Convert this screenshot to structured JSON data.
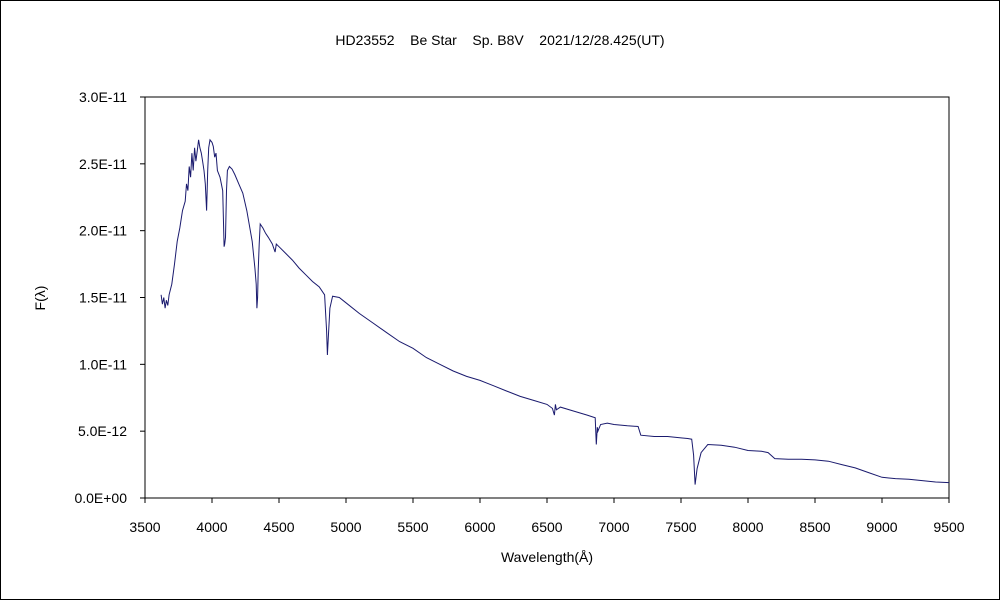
{
  "chart_data": {
    "type": "line",
    "title": "HD23552    Be Star    Sp. B8V    2021/12/28.425(UT)",
    "xlabel": "Wavelength(Å)",
    "ylabel": "F(λ)",
    "xlim": [
      3500,
      9500
    ],
    "ylim": [
      0,
      3e-11
    ],
    "xticks": [
      3500,
      4000,
      4500,
      5000,
      5500,
      6000,
      6500,
      7000,
      7500,
      8000,
      8500,
      9000,
      9500
    ],
    "xtick_labels": [
      "3500",
      "4000",
      "4500",
      "5000",
      "5500",
      "6000",
      "6500",
      "7000",
      "7500",
      "8000",
      "8500",
      "9000",
      "9500"
    ],
    "yticks": [
      0,
      5e-12,
      1e-11,
      1.5e-11,
      2e-11,
      2.5e-11,
      3e-11
    ],
    "ytick_labels": [
      "0.0E+00",
      "5.0E-12",
      "1.0E-11",
      "1.5E-11",
      "2.0E-11",
      "2.5E-11",
      "3.0E-11"
    ],
    "grid": false,
    "legend": "none",
    "line_color": "#1a1a6e",
    "series": [
      {
        "x": [
          3620,
          3630,
          3640,
          3650,
          3660,
          3670,
          3680,
          3700,
          3720,
          3740,
          3760,
          3780,
          3800,
          3810,
          3820,
          3830,
          3840,
          3850,
          3860,
          3870,
          3880,
          3890,
          3900,
          3910,
          3920,
          3930,
          3940,
          3950,
          3960,
          3968,
          3975,
          3985,
          4000,
          4010,
          4020,
          4030,
          4040,
          4060,
          4080,
          4090,
          4095,
          4101,
          4108,
          4115,
          4130,
          4150,
          4170,
          4200,
          4230,
          4260,
          4300,
          4320,
          4330,
          4335,
          4340,
          4345,
          4352,
          4360,
          4380,
          4400,
          4420,
          4450,
          4471,
          4480,
          4500,
          4550,
          4600,
          4650,
          4700,
          4750,
          4800,
          4840,
          4855,
          4861,
          4868,
          4880,
          4900,
          4950,
          5000,
          5100,
          5200,
          5300,
          5400,
          5500,
          5600,
          5700,
          5800,
          5900,
          6000,
          6100,
          6200,
          6300,
          6400,
          6500,
          6540,
          6555,
          6563,
          6570,
          6600,
          6700,
          6800,
          6860,
          6868,
          6875,
          6880,
          6900,
          6950,
          7000,
          7100,
          7180,
          7200,
          7300,
          7400,
          7500,
          7550,
          7580,
          7594,
          7605,
          7620,
          7650,
          7700,
          7800,
          7900,
          8000,
          8100,
          8150,
          8200,
          8300,
          8400,
          8500,
          8600,
          8700,
          8800,
          8900,
          9000,
          9100,
          9200,
          9300,
          9400,
          9500
        ],
        "y": [
          1.52e-11,
          1.45e-11,
          1.5e-11,
          1.42e-11,
          1.48e-11,
          1.44e-11,
          1.52e-11,
          1.6e-11,
          1.75e-11,
          1.92e-11,
          2.02e-11,
          2.15e-11,
          2.22e-11,
          2.35e-11,
          2.3e-11,
          2.48e-11,
          2.4e-11,
          2.58e-11,
          2.45e-11,
          2.62e-11,
          2.52e-11,
          2.6e-11,
          2.68e-11,
          2.62e-11,
          2.58e-11,
          2.52e-11,
          2.45e-11,
          2.35e-11,
          2.15e-11,
          2.45e-11,
          2.62e-11,
          2.68e-11,
          2.66e-11,
          2.63e-11,
          2.55e-11,
          2.58e-11,
          2.45e-11,
          2.4e-11,
          2.3e-11,
          1.88e-11,
          1.9e-11,
          1.95e-11,
          2.3e-11,
          2.45e-11,
          2.48e-11,
          2.46e-11,
          2.42e-11,
          2.35e-11,
          2.28e-11,
          2.15e-11,
          1.92e-11,
          1.72e-11,
          1.6e-11,
          1.42e-11,
          1.5e-11,
          1.7e-11,
          1.9e-11,
          2.05e-11,
          2.02e-11,
          1.98e-11,
          1.95e-11,
          1.9e-11,
          1.84e-11,
          1.9e-11,
          1.88e-11,
          1.83e-11,
          1.78e-11,
          1.72e-11,
          1.67e-11,
          1.62e-11,
          1.58e-11,
          1.52e-11,
          1.25e-11,
          1.07e-11,
          1.2e-11,
          1.42e-11,
          1.51e-11,
          1.5e-11,
          1.46e-11,
          1.38e-11,
          1.31e-11,
          1.24e-11,
          1.17e-11,
          1.12e-11,
          1.05e-11,
          1e-11,
          9.5e-12,
          9.1e-12,
          8.8e-12,
          8.4e-12,
          8e-12,
          7.6e-12,
          7.3e-12,
          7e-12,
          6.7e-12,
          6.2e-12,
          7e-12,
          6.6e-12,
          6.8e-12,
          6.5e-12,
          6.2e-12,
          6e-12,
          4e-12,
          5.3e-12,
          5e-12,
          5.5e-12,
          5.6e-12,
          5.5e-12,
          5.4e-12,
          5.35e-12,
          4.7e-12,
          4.6e-12,
          4.6e-12,
          4.5e-12,
          4.45e-12,
          4.4e-12,
          3.2e-12,
          1e-12,
          2.2e-12,
          3.4e-12,
          4e-12,
          3.95e-12,
          3.8e-12,
          3.55e-12,
          3.5e-12,
          3.4e-12,
          2.95e-12,
          2.9e-12,
          2.9e-12,
          2.85e-12,
          2.75e-12,
          2.5e-12,
          2.25e-12,
          1.9e-12,
          1.55e-12,
          1.45e-12,
          1.4e-12,
          1.3e-12,
          1.2e-12,
          1.15e-12
        ]
      }
    ]
  }
}
